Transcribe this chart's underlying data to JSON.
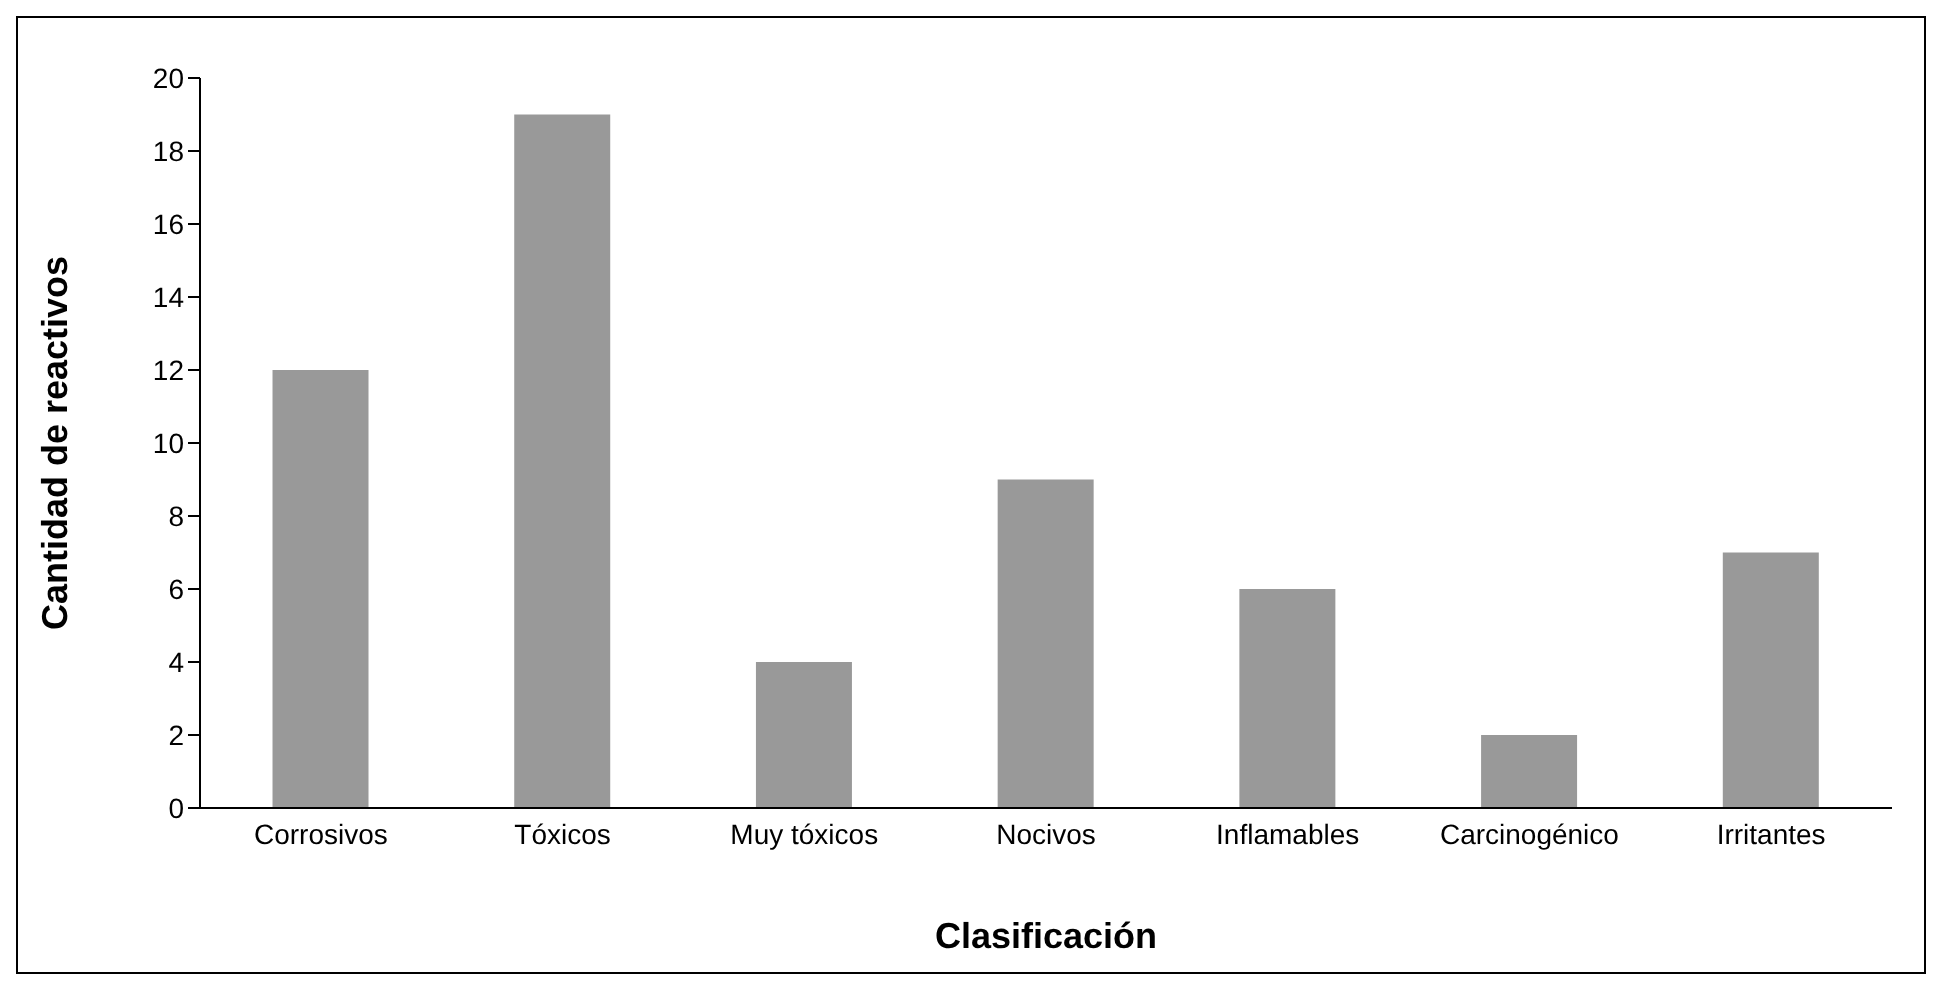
{
  "chart_data": {
    "type": "bar",
    "xlabel": "Clasificación",
    "ylabel": "Cantidad de reactivos",
    "categories": [
      "Corrosivos",
      "Tóxicos",
      "Muy tóxicos",
      "Nocivos",
      "Inflamables",
      "Carcinogénico",
      "Irritantes"
    ],
    "values": [
      12,
      19,
      4,
      9,
      6,
      2,
      7
    ],
    "color": "#999999",
    "ylim": [
      0,
      20
    ],
    "yticks": [
      0,
      2,
      4,
      6,
      8,
      10,
      12,
      14,
      16,
      18,
      20
    ],
    "grid": false
  }
}
